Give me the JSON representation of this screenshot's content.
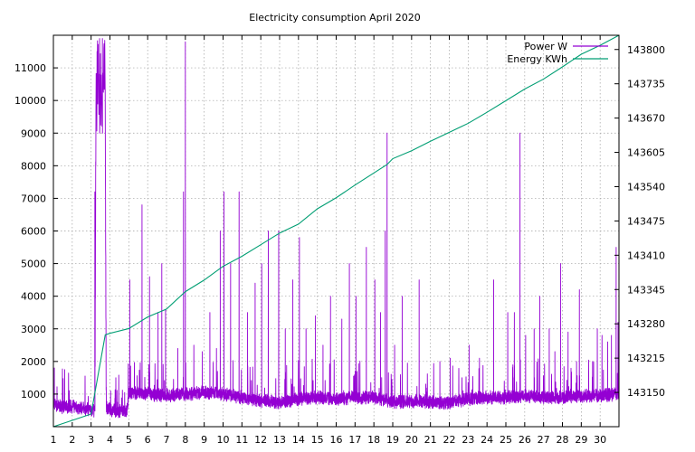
{
  "chart_data": {
    "type": "line",
    "title": "Electricity consumption April 2020",
    "grid": true,
    "legend_position": "top-right",
    "x_range": [
      1,
      31
    ],
    "x_ticks": [
      1,
      2,
      3,
      4,
      5,
      6,
      7,
      8,
      9,
      10,
      11,
      12,
      13,
      14,
      15,
      16,
      17,
      18,
      19,
      20,
      21,
      22,
      23,
      24,
      25,
      26,
      27,
      28,
      29,
      30
    ],
    "y_left": {
      "range": [
        0,
        12000
      ],
      "ticks": [
        1000,
        2000,
        3000,
        4000,
        5000,
        6000,
        7000,
        8000,
        9000,
        10000,
        11000
      ]
    },
    "y_right": {
      "range": [
        143085,
        143827
      ],
      "ticks": [
        143150,
        143215,
        143280,
        143345,
        143410,
        143475,
        143540,
        143605,
        143670,
        143735,
        143800
      ]
    },
    "series": [
      {
        "name": "Power W",
        "axis": "left",
        "color": "#9400d3",
        "baseline": [
          [
            1,
            680
          ],
          [
            1.5,
            600
          ],
          [
            2,
            620
          ],
          [
            2.6,
            560
          ],
          [
            3,
            520
          ],
          [
            3.2,
            480
          ],
          [
            3.25,
            9000
          ],
          [
            3.75,
            9000
          ],
          [
            3.8,
            600
          ],
          [
            4,
            520
          ],
          [
            4.5,
            480
          ],
          [
            4.9,
            500
          ],
          [
            5,
            1050
          ],
          [
            6,
            1000
          ],
          [
            7,
            950
          ],
          [
            8,
            1000
          ],
          [
            9,
            1050
          ],
          [
            10,
            1000
          ],
          [
            11,
            900
          ],
          [
            12,
            800
          ],
          [
            13,
            750
          ],
          [
            14,
            850
          ],
          [
            15,
            900
          ],
          [
            16,
            850
          ],
          [
            17,
            900
          ],
          [
            18,
            900
          ],
          [
            19,
            750
          ],
          [
            20,
            780
          ],
          [
            21,
            760
          ],
          [
            22,
            720
          ],
          [
            23,
            850
          ],
          [
            24,
            900
          ],
          [
            25,
            900
          ],
          [
            26,
            950
          ],
          [
            27,
            900
          ],
          [
            28,
            900
          ],
          [
            29,
            950
          ],
          [
            30,
            950
          ],
          [
            31,
            1000
          ]
        ],
        "spikes": [
          [
            1.05,
            1800
          ],
          [
            1.6,
            1750
          ],
          [
            3.2,
            7200
          ],
          [
            3.45,
            11900
          ],
          [
            3.6,
            11900
          ],
          [
            5.05,
            4500
          ],
          [
            5.7,
            6800
          ],
          [
            6.1,
            4600
          ],
          [
            6.55,
            3500
          ],
          [
            6.75,
            5000
          ],
          [
            6.95,
            3600
          ],
          [
            7.6,
            2400
          ],
          [
            7.9,
            7200
          ],
          [
            8.0,
            11800
          ],
          [
            8.45,
            2500
          ],
          [
            8.9,
            2300
          ],
          [
            9.3,
            3500
          ],
          [
            9.65,
            2400
          ],
          [
            9.85,
            6000
          ],
          [
            10.05,
            7200
          ],
          [
            10.4,
            5000
          ],
          [
            10.85,
            7200
          ],
          [
            11.3,
            3500
          ],
          [
            11.7,
            4400
          ],
          [
            12.05,
            5000
          ],
          [
            12.4,
            6000
          ],
          [
            12.95,
            6000
          ],
          [
            13.3,
            3000
          ],
          [
            13.7,
            4500
          ],
          [
            14.05,
            5800
          ],
          [
            14.4,
            3000
          ],
          [
            14.9,
            3400
          ],
          [
            15.3,
            2500
          ],
          [
            15.7,
            4000
          ],
          [
            16.3,
            3300
          ],
          [
            16.7,
            5000
          ],
          [
            17.05,
            4000
          ],
          [
            17.6,
            5500
          ],
          [
            18.05,
            4500
          ],
          [
            18.35,
            3500
          ],
          [
            18.6,
            6000
          ],
          [
            18.7,
            9000
          ],
          [
            19.1,
            2500
          ],
          [
            19.5,
            4000
          ],
          [
            20.4,
            4500
          ],
          [
            21.5,
            2000
          ],
          [
            22.05,
            2100
          ],
          [
            23.05,
            2500
          ],
          [
            23.6,
            2100
          ],
          [
            24.35,
            4500
          ],
          [
            25.1,
            3500
          ],
          [
            25.45,
            3500
          ],
          [
            25.75,
            9000
          ],
          [
            26.05,
            2800
          ],
          [
            26.5,
            3000
          ],
          [
            26.8,
            4000
          ],
          [
            27.3,
            3000
          ],
          [
            27.6,
            2300
          ],
          [
            27.9,
            5000
          ],
          [
            28.3,
            2900
          ],
          [
            28.75,
            2000
          ],
          [
            28.9,
            4200
          ],
          [
            29.6,
            2000
          ],
          [
            29.85,
            3000
          ],
          [
            30.1,
            2800
          ],
          [
            30.4,
            2600
          ],
          [
            30.6,
            2800
          ],
          [
            30.85,
            5500
          ],
          [
            30.95,
            3200
          ]
        ]
      },
      {
        "name": "Energy KWh",
        "axis": "right",
        "color": "#009e73",
        "points": [
          [
            1,
            143085
          ],
          [
            2,
            143097
          ],
          [
            3,
            143109
          ],
          [
            3.75,
            143259
          ],
          [
            4,
            143262
          ],
          [
            5,
            143271
          ],
          [
            6,
            143293
          ],
          [
            7,
            143308
          ],
          [
            8,
            143341
          ],
          [
            9,
            143363
          ],
          [
            10,
            143389
          ],
          [
            11,
            143408
          ],
          [
            12,
            143430
          ],
          [
            13,
            143452
          ],
          [
            14,
            143469
          ],
          [
            15,
            143498
          ],
          [
            16,
            143519
          ],
          [
            17,
            143543
          ],
          [
            18,
            143566
          ],
          [
            18.7,
            143582
          ],
          [
            19,
            143593
          ],
          [
            20,
            143608
          ],
          [
            21,
            143626
          ],
          [
            22,
            143643
          ],
          [
            23,
            143660
          ],
          [
            24,
            143681
          ],
          [
            25,
            143703
          ],
          [
            26,
            143725
          ],
          [
            27,
            143744
          ],
          [
            28,
            143767
          ],
          [
            29,
            143791
          ],
          [
            30,
            143808
          ],
          [
            31,
            143827
          ]
        ]
      }
    ]
  }
}
